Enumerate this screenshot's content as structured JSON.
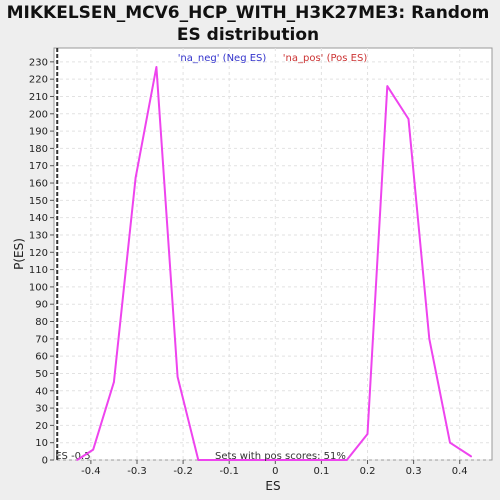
{
  "chart_data": {
    "type": "line",
    "title_line1": "MIKKELSEN_MCV6_HCP_WITH_H3K27ME3: Random",
    "title_line2": "ES distribution",
    "xlabel": "ES",
    "ylabel": "P(ES)",
    "xlim": [
      -0.48,
      0.47
    ],
    "ylim": [
      0,
      238
    ],
    "x_ticks": [
      -0.4,
      -0.3,
      -0.2,
      -0.1,
      0,
      0.1,
      0.2,
      0.3,
      0.4
    ],
    "x_tick_labels": [
      "-0.4",
      "-0.3",
      "-0.2",
      "-0.1",
      "0",
      "0.1",
      "0.2",
      "0.3",
      "0.4"
    ],
    "y_ticks": [
      0,
      10,
      20,
      30,
      40,
      50,
      60,
      70,
      80,
      90,
      100,
      110,
      120,
      130,
      140,
      150,
      160,
      170,
      180,
      190,
      200,
      210,
      220,
      230
    ],
    "grid": true,
    "legend": [
      {
        "label": "'na_neg' (Neg ES)",
        "color": "#3333cc"
      },
      {
        "label": "'na_pos' (Pos ES)",
        "color": "#cc3333"
      }
    ],
    "series": [
      {
        "color": "#ee44ee",
        "points": [
          [
            -0.43,
            0
          ],
          [
            -0.395,
            6
          ],
          [
            -0.35,
            45
          ],
          [
            -0.303,
            163
          ],
          [
            -0.258,
            227
          ],
          [
            -0.212,
            48
          ],
          [
            -0.167,
            0
          ],
          [
            0.155,
            0
          ],
          [
            0.2,
            15
          ],
          [
            0.243,
            216
          ],
          [
            0.289,
            197
          ],
          [
            0.334,
            70
          ],
          [
            0.379,
            10
          ],
          [
            0.425,
            2
          ]
        ]
      }
    ],
    "es_line": {
      "x": -0.473,
      "label": "ES -0.5"
    },
    "footer_note": "Sets with pos scores: 51%"
  }
}
